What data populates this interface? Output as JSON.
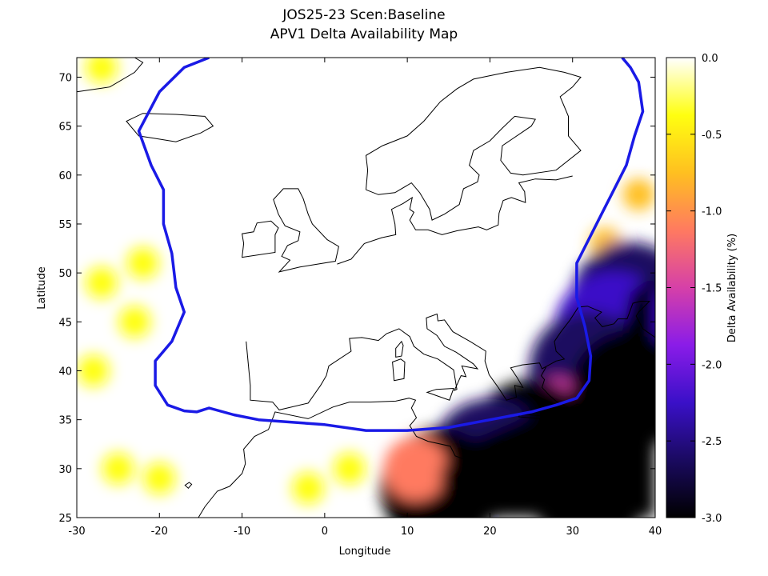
{
  "chart_data": {
    "type": "heatmap",
    "title_line1": "JOS25-23 Scen:Baseline",
    "title_line2": "APV1 Delta Availability Map",
    "xlabel": "Longitude",
    "ylabel": "Latitude",
    "colorbar_label": "Delta Availability (%)",
    "xlim": [
      -30,
      40
    ],
    "ylim": [
      25,
      72
    ],
    "x_ticks": [
      "-30",
      "-20",
      "-10",
      "0",
      "10",
      "20",
      "30",
      "40"
    ],
    "y_ticks": [
      "25",
      "30",
      "35",
      "40",
      "45",
      "50",
      "55",
      "60",
      "65",
      "70"
    ],
    "colorbar_range": [
      -3.0,
      0.0
    ],
    "colorbar_ticks": [
      "-3.0",
      "-2.5",
      "-2.0",
      "-1.5",
      "-1.0",
      "-0.5",
      "0.0"
    ],
    "colors": {
      "service_area_boundary": "#1a1ae6",
      "coastline": "#000000",
      "scale": [
        "#000000",
        "#1a0a60",
        "#3a10c8",
        "#8a1ce8",
        "#d640a8",
        "#ff7a60",
        "#ffc020",
        "#ffff10",
        "#ffffff"
      ]
    },
    "service_area_boundary": [
      [
        -14,
        72
      ],
      [
        -17,
        71
      ],
      [
        -20,
        68.5
      ],
      [
        -22.5,
        64.5
      ],
      [
        -21,
        61
      ],
      [
        -19.5,
        58.5
      ],
      [
        -19.5,
        55
      ],
      [
        -18.5,
        52
      ],
      [
        -18,
        48.5
      ],
      [
        -17,
        46
      ],
      [
        -18.5,
        43
      ],
      [
        -20.5,
        41
      ],
      [
        -20.5,
        38.5
      ],
      [
        -19,
        36.5
      ],
      [
        -17,
        35.9
      ],
      [
        -15.5,
        35.8
      ],
      [
        -14,
        36.2
      ],
      [
        -11,
        35.5
      ],
      [
        -8,
        35
      ],
      [
        0,
        34.5
      ],
      [
        5,
        33.9
      ],
      [
        10,
        33.9
      ],
      [
        15,
        34.2
      ],
      [
        20,
        35
      ],
      [
        25,
        35.8
      ],
      [
        28,
        36.5
      ],
      [
        30.5,
        37.2
      ],
      [
        32,
        39
      ],
      [
        32.2,
        41.5
      ],
      [
        31.5,
        44.5
      ],
      [
        30.5,
        47.5
      ],
      [
        30.5,
        51
      ],
      [
        32,
        53.5
      ],
      [
        33.5,
        56
      ],
      [
        35,
        58.5
      ],
      [
        36.5,
        61
      ],
      [
        37.5,
        64
      ],
      [
        38.5,
        66.5
      ],
      [
        38,
        69.5
      ],
      [
        37,
        71
      ],
      [
        36,
        72
      ]
    ],
    "degradation_regions": [
      {
        "lon": 34,
        "lat": 53,
        "value": -0.7
      },
      {
        "lon": 36,
        "lat": 50,
        "value": -1.8
      },
      {
        "lon": 37,
        "lat": 47,
        "value": -2.8
      },
      {
        "lon": 35,
        "lat": 44,
        "value": -2.4
      },
      {
        "lon": 32,
        "lat": 40,
        "value": -2.7
      },
      {
        "lon": 28,
        "lat": 36,
        "value": -1.4
      },
      {
        "lon": 25,
        "lat": 33,
        "value": -3.0
      },
      {
        "lon": 20,
        "lat": 31,
        "value": -2.5
      },
      {
        "lon": 14,
        "lat": 28,
        "value": -2.9
      },
      {
        "lon": 11,
        "lat": 30,
        "value": -1.2
      },
      {
        "lon": 32,
        "lat": 28,
        "value": -3.0
      },
      {
        "lon": 37,
        "lat": 38,
        "value": -3.0
      },
      {
        "lon": 38,
        "lat": 58,
        "value": -0.6
      },
      {
        "lon": 38,
        "lat": 64,
        "value": -0.1
      },
      {
        "lon": -27,
        "lat": 49,
        "value": -0.3
      },
      {
        "lon": -28,
        "lat": 40,
        "value": -0.4
      },
      {
        "lon": -22,
        "lat": 51,
        "value": -0.3
      },
      {
        "lon": -23,
        "lat": 45,
        "value": -0.3
      },
      {
        "lon": -20,
        "lat": 29,
        "value": -0.5
      },
      {
        "lon": -25,
        "lat": 30,
        "value": -0.3
      },
      {
        "lon": -2,
        "lat": 28,
        "value": -0.3
      },
      {
        "lon": 3,
        "lat": 30,
        "value": -0.3
      },
      {
        "lon": -27,
        "lat": 71,
        "value": -0.2
      }
    ]
  }
}
